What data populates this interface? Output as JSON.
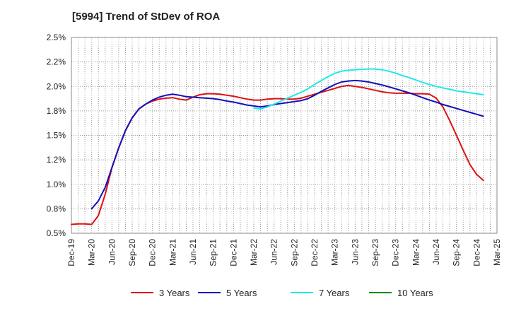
{
  "chart_data": {
    "type": "line",
    "title": "[5994]  Trend of StDev of ROA",
    "xlabel": "",
    "ylabel": "",
    "ylim": [
      0.5,
      2.5
    ],
    "y_ticks": [
      "2.5%",
      "2.2%",
      "2.0%",
      "1.8%",
      "1.5%",
      "1.2%",
      "1.0%",
      "0.8%",
      "0.5%"
    ],
    "y_tick_values": [
      2.5,
      2.25,
      2.0,
      1.75,
      1.5,
      1.25,
      1.0,
      0.75,
      0.5
    ],
    "x_categories": [
      "Dec-19",
      "Mar-20",
      "Jun-20",
      "Sep-20",
      "Dec-20",
      "Mar-21",
      "Jun-21",
      "Sep-21",
      "Dec-21",
      "Mar-22",
      "Jun-22",
      "Sep-22",
      "Dec-22",
      "Mar-23",
      "Jun-23",
      "Sep-23",
      "Dec-23",
      "Mar-24",
      "Jun-24",
      "Sep-24",
      "Dec-24",
      "Mar-25"
    ],
    "grid": true,
    "legend_position": "bottom",
    "series": [
      {
        "name": "3 Years",
        "color": "#dd1111",
        "points": [
          [
            0,
            0.59
          ],
          [
            0.33,
            0.595
          ],
          [
            0.67,
            0.595
          ],
          [
            1.0,
            0.59
          ],
          [
            1.33,
            0.68
          ],
          [
            1.67,
            0.9
          ],
          [
            2.0,
            1.17
          ],
          [
            2.33,
            1.37
          ],
          [
            2.67,
            1.55
          ],
          [
            3.0,
            1.68
          ],
          [
            3.33,
            1.77
          ],
          [
            3.67,
            1.82
          ],
          [
            4.0,
            1.85
          ],
          [
            4.33,
            1.87
          ],
          [
            4.67,
            1.88
          ],
          [
            5.0,
            1.885
          ],
          [
            5.33,
            1.87
          ],
          [
            5.67,
            1.86
          ],
          [
            6.0,
            1.89
          ],
          [
            6.33,
            1.915
          ],
          [
            6.67,
            1.925
          ],
          [
            7.0,
            1.925
          ],
          [
            7.33,
            1.92
          ],
          [
            7.67,
            1.91
          ],
          [
            8.0,
            1.9
          ],
          [
            8.33,
            1.885
          ],
          [
            8.67,
            1.87
          ],
          [
            9.0,
            1.86
          ],
          [
            9.33,
            1.86
          ],
          [
            9.67,
            1.87
          ],
          [
            10.0,
            1.875
          ],
          [
            10.33,
            1.875
          ],
          [
            10.67,
            1.87
          ],
          [
            11.0,
            1.87
          ],
          [
            11.33,
            1.88
          ],
          [
            11.67,
            1.9
          ],
          [
            12.0,
            1.92
          ],
          [
            12.33,
            1.94
          ],
          [
            12.67,
            1.96
          ],
          [
            13.0,
            1.98
          ],
          [
            13.33,
            2.0
          ],
          [
            13.67,
            2.01
          ],
          [
            14.0,
            2.0
          ],
          [
            14.33,
            1.99
          ],
          [
            14.67,
            1.975
          ],
          [
            15.0,
            1.96
          ],
          [
            15.33,
            1.945
          ],
          [
            15.67,
            1.935
          ],
          [
            16.0,
            1.93
          ],
          [
            16.33,
            1.93
          ],
          [
            16.67,
            1.93
          ],
          [
            17.0,
            1.925
          ],
          [
            17.33,
            1.925
          ],
          [
            17.67,
            1.92
          ],
          [
            18.0,
            1.88
          ],
          [
            18.33,
            1.79
          ],
          [
            18.67,
            1.65
          ],
          [
            19.0,
            1.5
          ],
          [
            19.33,
            1.35
          ],
          [
            19.67,
            1.2
          ],
          [
            20.0,
            1.1
          ],
          [
            20.33,
            1.04
          ]
        ]
      },
      {
        "name": "5 Years",
        "color": "#1111bb",
        "points": [
          [
            1.0,
            0.75
          ],
          [
            1.33,
            0.83
          ],
          [
            1.67,
            0.97
          ],
          [
            2.0,
            1.17
          ],
          [
            2.33,
            1.37
          ],
          [
            2.67,
            1.55
          ],
          [
            3.0,
            1.68
          ],
          [
            3.33,
            1.77
          ],
          [
            3.67,
            1.82
          ],
          [
            4.0,
            1.86
          ],
          [
            4.33,
            1.89
          ],
          [
            4.67,
            1.91
          ],
          [
            5.0,
            1.92
          ],
          [
            5.33,
            1.91
          ],
          [
            5.67,
            1.895
          ],
          [
            6.0,
            1.89
          ],
          [
            6.33,
            1.885
          ],
          [
            6.67,
            1.88
          ],
          [
            7.0,
            1.875
          ],
          [
            7.33,
            1.865
          ],
          [
            7.67,
            1.85
          ],
          [
            8.0,
            1.84
          ],
          [
            8.33,
            1.825
          ],
          [
            8.67,
            1.81
          ],
          [
            9.0,
            1.8
          ],
          [
            9.33,
            1.79
          ],
          [
            9.67,
            1.8
          ],
          [
            10.0,
            1.815
          ],
          [
            10.33,
            1.825
          ],
          [
            10.67,
            1.835
          ],
          [
            11.0,
            1.845
          ],
          [
            11.33,
            1.855
          ],
          [
            11.67,
            1.875
          ],
          [
            12.0,
            1.91
          ],
          [
            12.33,
            1.95
          ],
          [
            12.67,
            1.985
          ],
          [
            13.0,
            2.02
          ],
          [
            13.33,
            2.045
          ],
          [
            13.67,
            2.055
          ],
          [
            14.0,
            2.06
          ],
          [
            14.33,
            2.055
          ],
          [
            14.67,
            2.045
          ],
          [
            15.0,
            2.03
          ],
          [
            15.33,
            2.015
          ],
          [
            15.67,
            1.995
          ],
          [
            16.0,
            1.975
          ],
          [
            16.33,
            1.955
          ],
          [
            16.67,
            1.935
          ],
          [
            17.0,
            1.91
          ],
          [
            17.33,
            1.885
          ],
          [
            17.67,
            1.86
          ],
          [
            18.0,
            1.84
          ],
          [
            18.33,
            1.815
          ],
          [
            18.67,
            1.795
          ],
          [
            19.0,
            1.775
          ],
          [
            19.33,
            1.755
          ],
          [
            19.67,
            1.735
          ],
          [
            20.0,
            1.715
          ],
          [
            20.33,
            1.695
          ]
        ]
      },
      {
        "name": "7 Years",
        "color": "#22e8e8",
        "points": [
          [
            9.0,
            1.78
          ],
          [
            9.33,
            1.77
          ],
          [
            9.67,
            1.79
          ],
          [
            10.0,
            1.82
          ],
          [
            10.33,
            1.85
          ],
          [
            10.67,
            1.88
          ],
          [
            11.0,
            1.91
          ],
          [
            11.33,
            1.94
          ],
          [
            11.67,
            1.975
          ],
          [
            12.0,
            2.02
          ],
          [
            12.33,
            2.06
          ],
          [
            12.67,
            2.1
          ],
          [
            13.0,
            2.135
          ],
          [
            13.33,
            2.155
          ],
          [
            13.67,
            2.165
          ],
          [
            14.0,
            2.17
          ],
          [
            14.33,
            2.175
          ],
          [
            14.67,
            2.178
          ],
          [
            15.0,
            2.178
          ],
          [
            15.33,
            2.17
          ],
          [
            15.67,
            2.155
          ],
          [
            16.0,
            2.135
          ],
          [
            16.33,
            2.11
          ],
          [
            16.67,
            2.09
          ],
          [
            17.0,
            2.065
          ],
          [
            17.33,
            2.04
          ],
          [
            17.67,
            2.02
          ],
          [
            18.0,
            2.0
          ],
          [
            18.33,
            1.985
          ],
          [
            18.67,
            1.97
          ],
          [
            19.0,
            1.955
          ],
          [
            19.33,
            1.945
          ],
          [
            19.67,
            1.935
          ],
          [
            20.0,
            1.925
          ],
          [
            20.33,
            1.915
          ]
        ]
      },
      {
        "name": "10 Years",
        "color": "#1a8a1a",
        "points": []
      }
    ]
  }
}
